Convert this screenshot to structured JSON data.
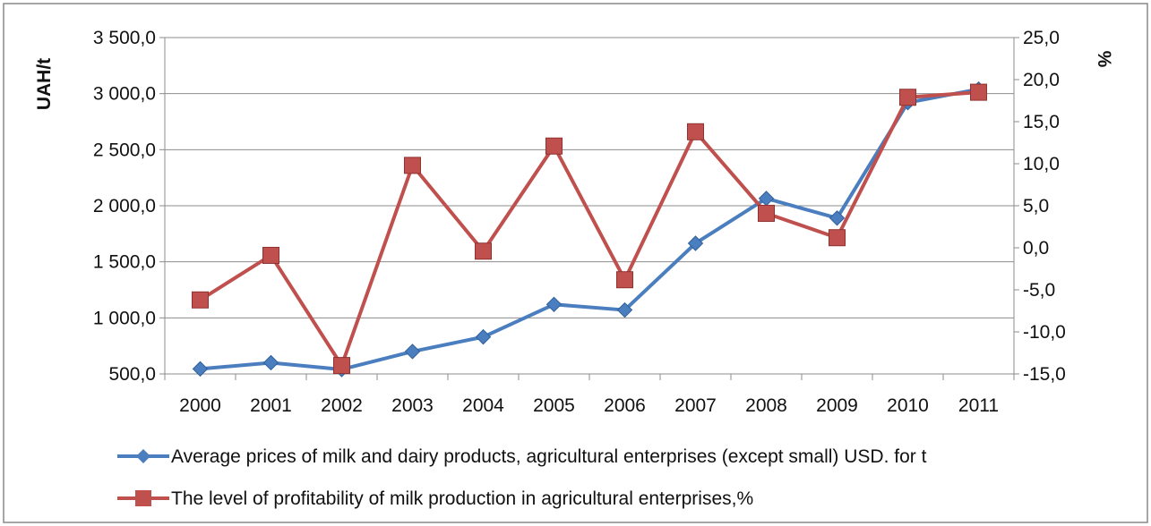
{
  "chart_data": {
    "type": "line",
    "title": "",
    "xlabel": "",
    "ylabel": "UAH/t",
    "y2label": "%",
    "categories": [
      "2000",
      "2001",
      "2002",
      "2003",
      "2004",
      "2005",
      "2006",
      "2007",
      "2008",
      "2009",
      "2010",
      "2011"
    ],
    "ylim": [
      500,
      3500
    ],
    "y2lim": [
      -15,
      25
    ],
    "yticks": [
      "500,0",
      "1 000,0",
      "1 500,0",
      "2 000,0",
      "2 500,0",
      "3 000,0",
      "3 500,0"
    ],
    "y2ticks": [
      "-15,0",
      "-10,0",
      "-5,0",
      "0,0",
      "5,0",
      "10,0",
      "15,0",
      "20,0",
      "25,0"
    ],
    "grid": true,
    "legend": "bottom",
    "series": [
      {
        "name": "Average prices of milk and dairy products, agricultural enterprises (except small) USD. for t",
        "axis": "left",
        "color": "#4a7ebf",
        "marker": "diamond",
        "values": [
          545,
          600,
          540,
          700,
          830,
          1120,
          1070,
          1665,
          2065,
          1890,
          2920,
          3040
        ]
      },
      {
        "name": "The level of profitability of milk production in agricultural enterprises,%",
        "axis": "right",
        "color": "#c0504d",
        "marker": "square",
        "values": [
          -6.2,
          -0.9,
          -14.0,
          9.8,
          -0.4,
          12.1,
          -3.8,
          13.8,
          4.1,
          1.2,
          17.9,
          18.5
        ]
      }
    ]
  }
}
